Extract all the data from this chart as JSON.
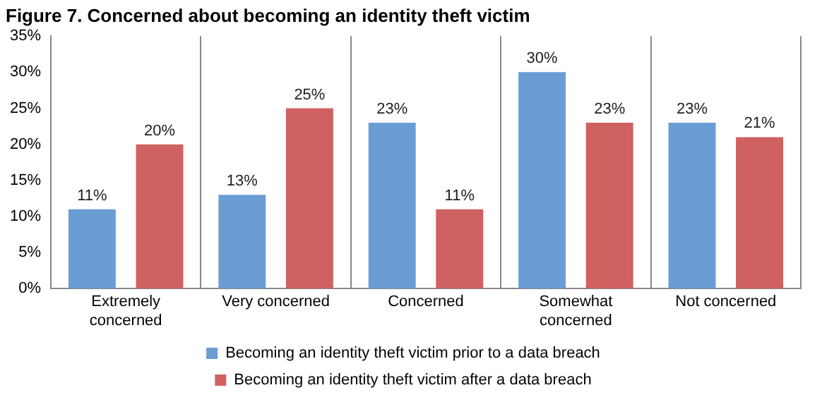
{
  "chart_data": {
    "type": "bar",
    "title": "Figure 7. Concerned about becoming an identity theft victim",
    "categories": [
      "Extremely concerned",
      "Very concerned",
      "Concerned",
      "Somewhat concerned",
      "Not concerned"
    ],
    "series": [
      {
        "name": "Becoming an identity theft victim prior to a data breach",
        "color": "#6a9dd4",
        "values": [
          11,
          13,
          23,
          30,
          23
        ],
        "value_labels": [
          "11%",
          "13%",
          "23%",
          "30%",
          "23%"
        ]
      },
      {
        "name": "Becoming an identity theft victim after a data breach",
        "color": "#cf6160",
        "values": [
          20,
          25,
          11,
          23,
          21
        ],
        "value_labels": [
          "20%",
          "25%",
          "11%",
          "23%",
          "21%"
        ]
      }
    ],
    "ylim": [
      0,
      35
    ],
    "yticks": [
      {
        "value": 0,
        "label": "0%"
      },
      {
        "value": 5,
        "label": "5%"
      },
      {
        "value": 10,
        "label": "10%"
      },
      {
        "value": 15,
        "label": "15%"
      },
      {
        "value": 20,
        "label": "20%"
      },
      {
        "value": 25,
        "label": "25%"
      },
      {
        "value": 30,
        "label": "30%"
      },
      {
        "value": 35,
        "label": "35%"
      }
    ],
    "grid": "x",
    "legend": "bottom"
  }
}
